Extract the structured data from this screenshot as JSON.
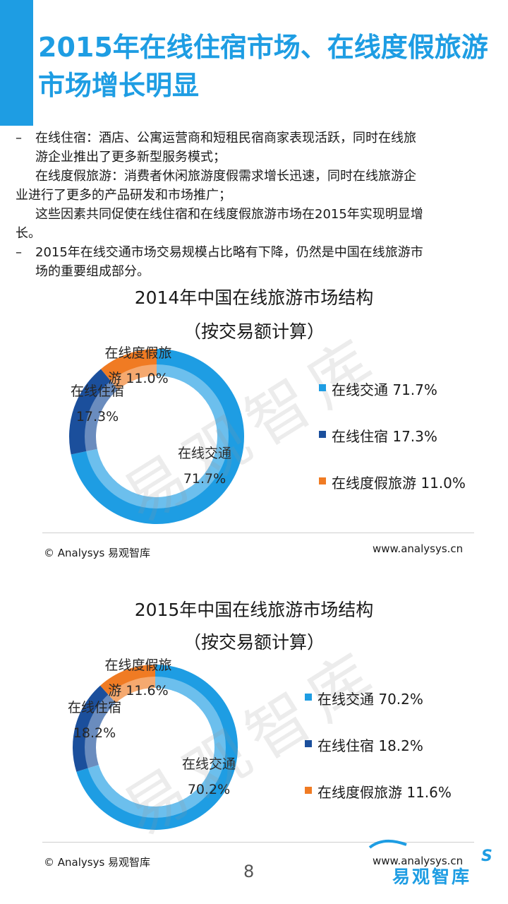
{
  "title": "2015年在线住宿市场、在线度假旅游市场增长明显",
  "bullets": {
    "b1_line1": "在线住宿：酒店、公寓运营商和短租民宿商家表现活跃，同时在线旅",
    "b1_line2": "游企业推出了更多新型服务模式；",
    "b1_line3": "在线度假旅游：消费者休闲旅游度假需求增长迅速，同时在线旅游企",
    "b1_line4": "业进行了更多的产品研发和市场推广；",
    "b1_line5": "这些因素共同促使在线住宿和在线度假旅游市场在2015年实现明显增",
    "b1_line6": "长。",
    "b2_line1": "2015年在线交通市场交易规模占比略有下降，仍然是中国在线旅游市",
    "b2_line2": "场的重要组成部分。",
    "dash": "–"
  },
  "chart_data": [
    {
      "type": "pie",
      "title": "2014年中国在线旅游市场结构",
      "subtitle": "（按交易额计算）",
      "categories": [
        "在线交通",
        "在线住宿",
        "在线度假旅游"
      ],
      "values": [
        71.7,
        17.3,
        11.0
      ],
      "unit": "%",
      "colors": [
        "#1e9de3",
        "#1b4f9c",
        "#f07b23"
      ],
      "legend_position": "right",
      "legend": [
        "在线交通 71.7%",
        "在线住宿 17.3%",
        "在线度假旅游 11.0%"
      ],
      "slice_labels": [
        {
          "name": "在线交通",
          "value": "71.7%"
        },
        {
          "name": "在线住宿",
          "value": "17.3%"
        },
        {
          "name": "在线度假旅",
          "value": "游 11.0%"
        }
      ]
    },
    {
      "type": "pie",
      "title": "2015年中国在线旅游市场结构",
      "subtitle": "（按交易额计算）",
      "categories": [
        "在线交通",
        "在线住宿",
        "在线度假旅游"
      ],
      "values": [
        70.2,
        18.2,
        11.6
      ],
      "unit": "%",
      "colors": [
        "#1e9de3",
        "#1b4f9c",
        "#f07b23"
      ],
      "legend_position": "right",
      "legend": [
        "在线交通 70.2%",
        "在线住宿 18.2%",
        "在线度假旅游 11.6%"
      ],
      "slice_labels": [
        {
          "name": "在线交通",
          "value": "70.2%"
        },
        {
          "name": "在线住宿",
          "value": "18.2%"
        },
        {
          "name": "在线度假旅",
          "value": "游 11.6%"
        }
      ]
    }
  ],
  "footer": {
    "left": "© Analysys 易观智库",
    "right": "www.analysys.cn"
  },
  "watermark": "易观智库",
  "page_number": "8",
  "logo": {
    "text": "易观智库",
    "letter": "S"
  }
}
